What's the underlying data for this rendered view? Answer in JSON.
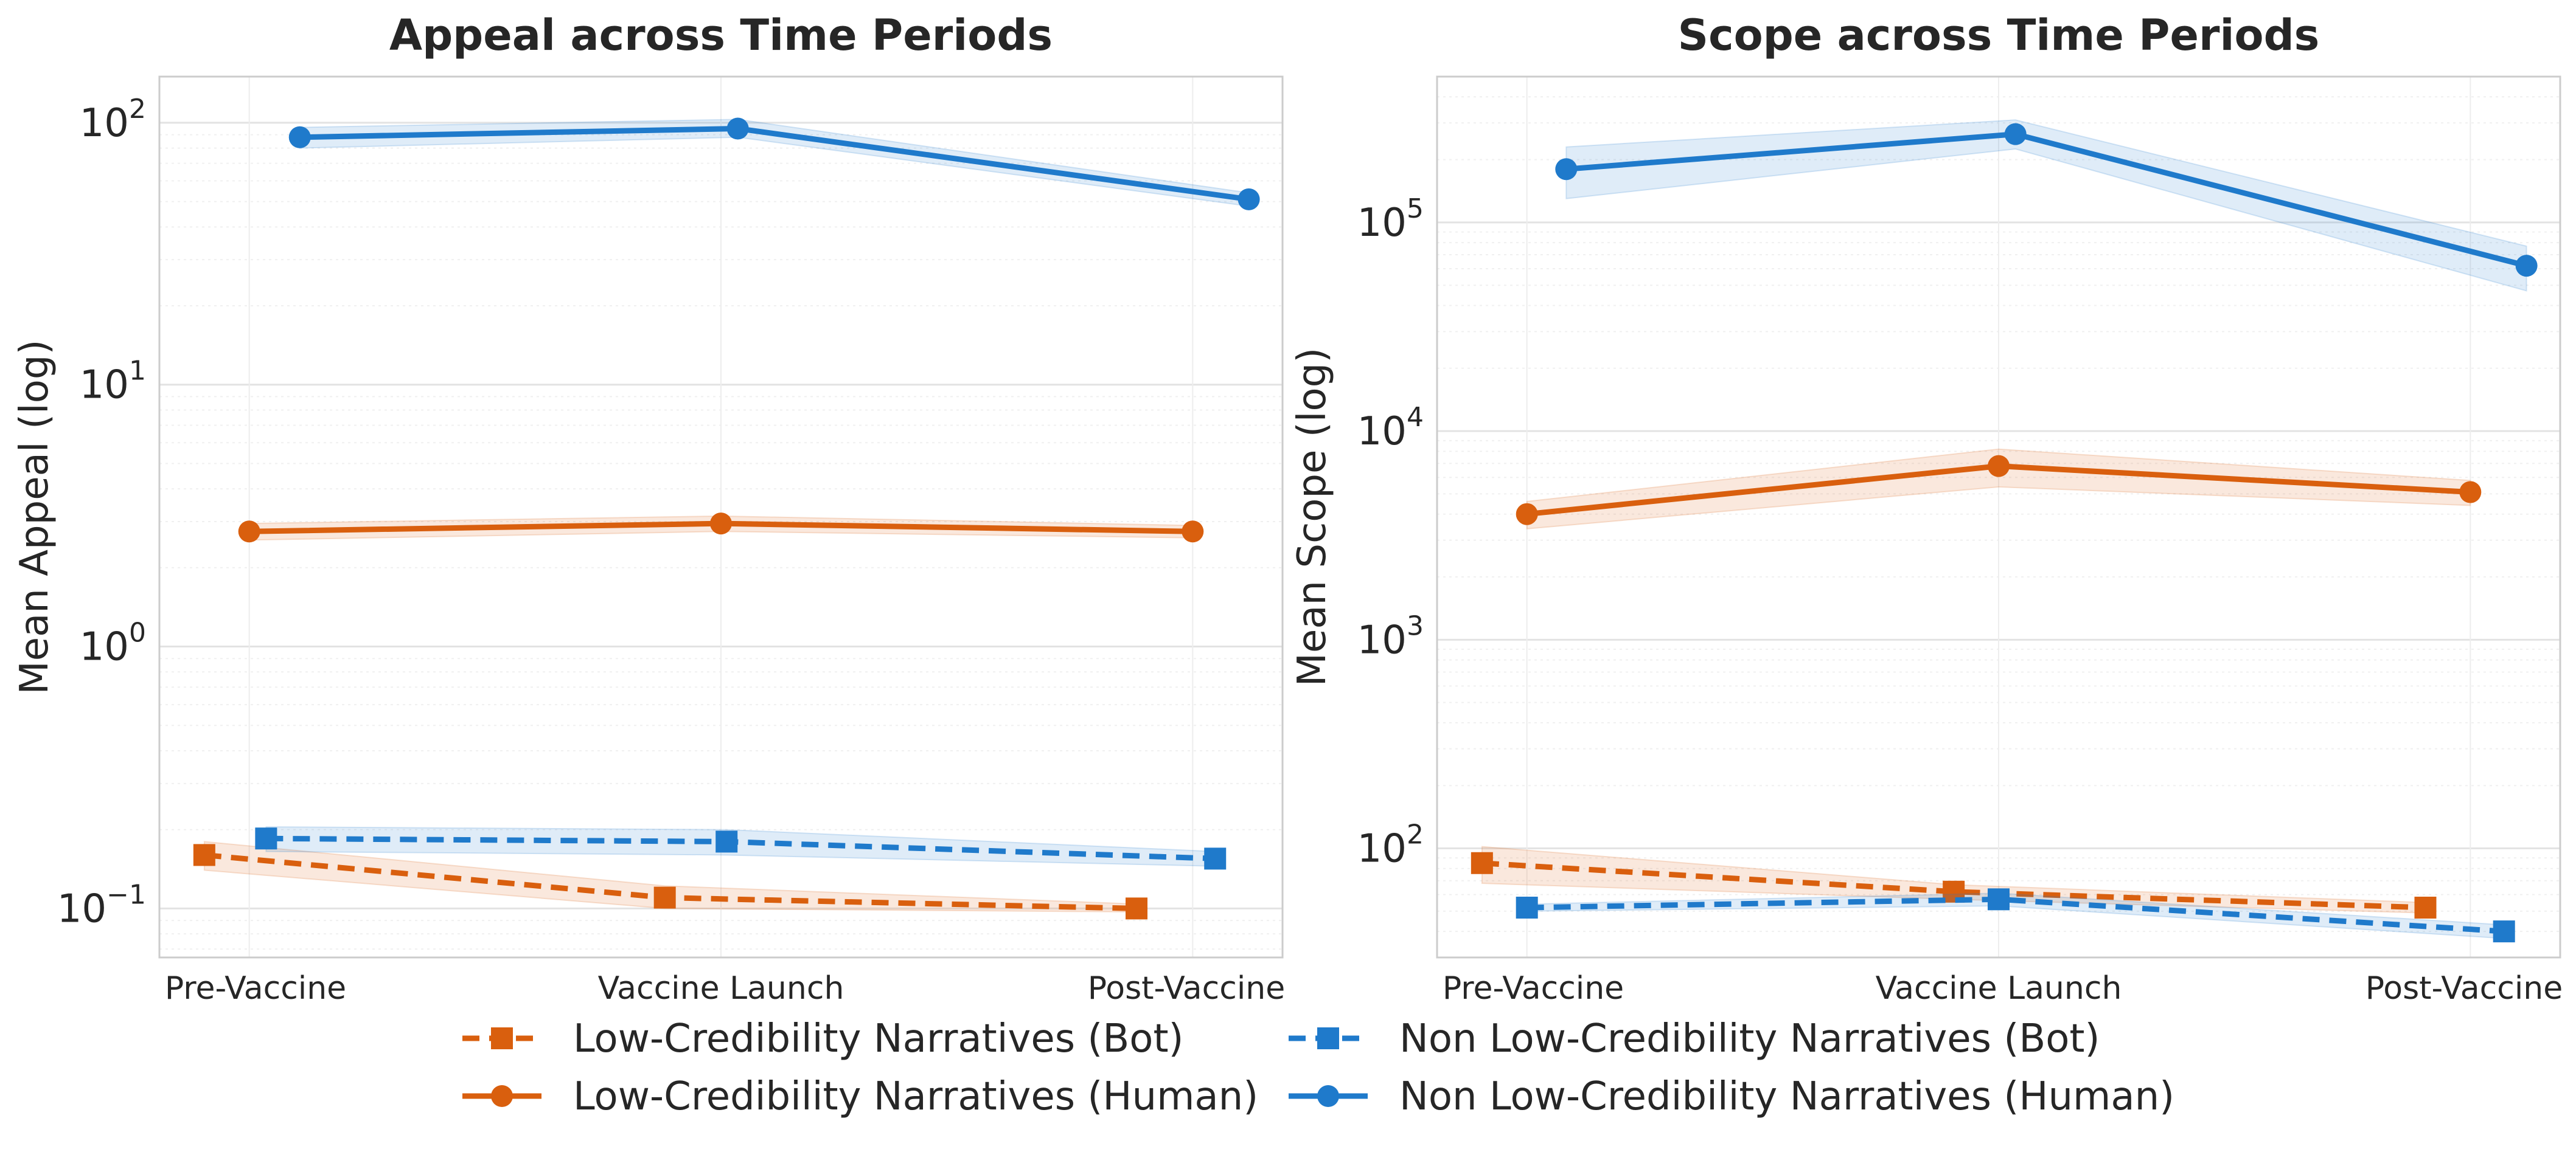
{
  "colors": {
    "low_cred": "#d95f0e",
    "non_low_cred": "#1f7acb",
    "grid": "#e6e6e6",
    "frame": "#cccccc"
  },
  "legend": {
    "position": "bottom-center",
    "entries": [
      {
        "label": "Low-Credibility Narratives (Bot)",
        "color": "#d95f0e",
        "linestyle": "dashed",
        "marker": "square"
      },
      {
        "label": "Non Low-Credibility Narratives (Bot)",
        "color": "#1f7acb",
        "linestyle": "dashed",
        "marker": "square"
      },
      {
        "label": "Low-Credibility Narratives (Human)",
        "color": "#d95f0e",
        "linestyle": "solid",
        "marker": "circle"
      },
      {
        "label": "Non Low-Credibility Narratives (Human)",
        "color": "#1f7acb",
        "linestyle": "solid",
        "marker": "circle"
      }
    ]
  },
  "chart_data": [
    {
      "type": "line",
      "title": "Appeal across Time Periods",
      "xlabel": "",
      "ylabel": "Mean Appeal (log)",
      "yscale": "log",
      "ylim": [
        0.065,
        150
      ],
      "yticks": [
        {
          "base": "10",
          "exp": "−1",
          "value": 0.1
        },
        {
          "base": "10",
          "exp": "0",
          "value": 1
        },
        {
          "base": "10",
          "exp": "1",
          "value": 10
        },
        {
          "base": "10",
          "exp": "2",
          "value": 100
        }
      ],
      "grid": true,
      "categories": [
        "Pre-Vaccine",
        "Vaccine Launch",
        "Post-Vaccine"
      ],
      "series": [
        {
          "name": "Low-Credibility Narratives (Bot)",
          "color": "#d95f0e",
          "linestyle": "dashed",
          "marker": "square",
          "values": [
            0.16,
            0.11,
            0.1
          ],
          "band": [
            [
              0.14,
              0.18
            ],
            [
              0.1,
              0.122
            ],
            [
              0.097,
              0.104
            ]
          ]
        },
        {
          "name": "Non Low-Credibility Narratives (Bot)",
          "color": "#1f7acb",
          "linestyle": "dashed",
          "marker": "square",
          "values": [
            0.185,
            0.18,
            0.155
          ],
          "band": [
            [
              0.165,
              0.205
            ],
            [
              0.16,
              0.2
            ],
            [
              0.145,
              0.165
            ]
          ]
        },
        {
          "name": "Low-Credibility Narratives (Human)",
          "color": "#d95f0e",
          "linestyle": "solid",
          "marker": "circle",
          "values": [
            2.75,
            2.95,
            2.75
          ],
          "band": [
            [
              2.55,
              2.95
            ],
            [
              2.75,
              3.15
            ],
            [
              2.6,
              2.9
            ]
          ]
        },
        {
          "name": "Non Low-Credibility Narratives (Human)",
          "color": "#1f7acb",
          "linestyle": "solid",
          "marker": "circle",
          "values": [
            88,
            95,
            51
          ],
          "band": [
            [
              80,
              96
            ],
            [
              88,
              103
            ],
            [
              48,
              54
            ]
          ]
        }
      ]
    },
    {
      "type": "line",
      "title": "Scope across Time Periods",
      "xlabel": "",
      "ylabel": "Mean Scope (log)",
      "yscale": "log",
      "ylim": [
        30,
        500000
      ],
      "yticks": [
        {
          "base": "10",
          "exp": "2",
          "value": 100
        },
        {
          "base": "10",
          "exp": "3",
          "value": 1000
        },
        {
          "base": "10",
          "exp": "4",
          "value": 10000
        },
        {
          "base": "10",
          "exp": "5",
          "value": 100000
        }
      ],
      "grid": true,
      "categories": [
        "Pre-Vaccine",
        "Vaccine Launch",
        "Post-Vaccine"
      ],
      "series": [
        {
          "name": "Low-Credibility Narratives (Bot)",
          "color": "#d95f0e",
          "linestyle": "dashed",
          "marker": "square",
          "values": [
            85,
            62,
            52
          ],
          "band": [
            [
              68,
              102
            ],
            [
              57,
              67
            ],
            [
              49,
              55
            ]
          ]
        },
        {
          "name": "Non Low-Credibility Narratives (Bot)",
          "color": "#1f7acb",
          "linestyle": "dashed",
          "marker": "square",
          "values": [
            52,
            57,
            40
          ],
          "band": [
            [
              50,
              54
            ],
            [
              53,
              61
            ],
            [
              37,
              43
            ]
          ]
        },
        {
          "name": "Low-Credibility Narratives (Human)",
          "color": "#d95f0e",
          "linestyle": "solid",
          "marker": "circle",
          "values": [
            4000,
            6800,
            5100
          ],
          "band": [
            [
              3400,
              4600
            ],
            [
              5400,
              8200
            ],
            [
              4400,
              5800
            ]
          ]
        },
        {
          "name": "Non Low-Credibility Narratives (Human)",
          "color": "#1f7acb",
          "linestyle": "solid",
          "marker": "circle",
          "values": [
            180000,
            265000,
            62000
          ],
          "band": [
            [
              130000,
              230000
            ],
            [
              225000,
              310000
            ],
            [
              47000,
              77000
            ]
          ]
        }
      ]
    }
  ]
}
